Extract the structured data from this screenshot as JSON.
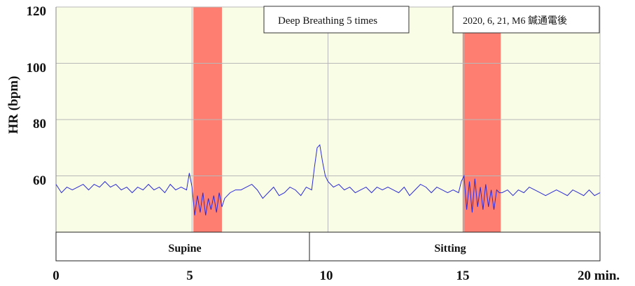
{
  "chart_data": {
    "type": "line",
    "title": "",
    "xlabel": "min.",
    "ylabel": "HR (bpm)",
    "xlim": [
      0,
      20
    ],
    "ylim": [
      40,
      120
    ],
    "grid": true,
    "x_ticks": [
      0,
      5,
      10,
      15,
      20
    ],
    "x_tick_labels": [
      "0",
      "5",
      "10",
      "15",
      "20 min."
    ],
    "y_ticks": [
      60,
      80,
      100,
      120
    ],
    "y_tick_labels": [
      "60",
      "80",
      "100",
      "120"
    ],
    "background_color": "#fafde6",
    "line_color": "#2b2bd8",
    "highlight_color": "#fe7f72",
    "highlights": [
      {
        "x_start": 5.05,
        "x_end": 6.1
      },
      {
        "x_start": 14.95,
        "x_end": 16.35
      }
    ],
    "annotations": [
      {
        "text": "Deep Breathing 5 times"
      },
      {
        "text": "2020, 6, 21, M6 鍼通電後"
      }
    ],
    "phases": [
      {
        "label": "Supine",
        "x_start": 0,
        "x_end": 9.3
      },
      {
        "label": "Sitting",
        "x_start": 9.3,
        "x_end": 20
      }
    ],
    "series": [
      {
        "x": [
          0,
          0.2,
          0.4,
          0.6,
          0.8,
          1.0,
          1.2,
          1.4,
          1.6,
          1.8,
          2.0,
          2.2,
          2.4,
          2.6,
          2.8,
          3.0,
          3.2,
          3.4,
          3.6,
          3.8,
          4.0,
          4.2,
          4.4,
          4.6,
          4.8,
          4.9,
          5.0,
          5.1,
          5.2,
          5.3,
          5.4,
          5.5,
          5.6,
          5.7,
          5.8,
          5.9,
          6.0,
          6.1,
          6.2,
          6.4,
          6.6,
          6.8,
          7.0,
          7.2,
          7.4,
          7.6,
          7.8,
          8.0,
          8.2,
          8.4,
          8.6,
          8.8,
          9.0,
          9.2,
          9.4,
          9.5,
          9.6,
          9.7,
          9.8,
          9.9,
          10.0,
          10.2,
          10.4,
          10.6,
          10.8,
          11.0,
          11.2,
          11.4,
          11.6,
          11.8,
          12.0,
          12.2,
          12.4,
          12.6,
          12.8,
          13.0,
          13.2,
          13.4,
          13.6,
          13.8,
          14.0,
          14.2,
          14.4,
          14.6,
          14.8,
          14.9,
          15.0,
          15.1,
          15.2,
          15.3,
          15.4,
          15.5,
          15.6,
          15.7,
          15.8,
          15.9,
          16.0,
          16.1,
          16.2,
          16.3,
          16.4,
          16.6,
          16.8,
          17.0,
          17.2,
          17.4,
          17.6,
          17.8,
          18.0,
          18.2,
          18.4,
          18.6,
          18.8,
          19.0,
          19.2,
          19.4,
          19.6,
          19.8,
          20.0
        ],
        "values": [
          57,
          54,
          56,
          55,
          56,
          57,
          55,
          57,
          56,
          58,
          56,
          57,
          55,
          56,
          54,
          56,
          55,
          57,
          55,
          56,
          54,
          57,
          55,
          56,
          55,
          61,
          56,
          46,
          53,
          47,
          54,
          46,
          52,
          48,
          53,
          47,
          54,
          49,
          52,
          54,
          55,
          55,
          56,
          57,
          55,
          52,
          54,
          56,
          53,
          54,
          56,
          55,
          53,
          56,
          55,
          63,
          70,
          71,
          65,
          60,
          58,
          56,
          57,
          55,
          56,
          54,
          55,
          56,
          54,
          56,
          55,
          56,
          55,
          54,
          56,
          53,
          55,
          57,
          56,
          54,
          56,
          55,
          54,
          55,
          54,
          58,
          60,
          48,
          58,
          47,
          59,
          49,
          56,
          48,
          57,
          49,
          55,
          48,
          55,
          54,
          54,
          55,
          53,
          55,
          54,
          56,
          55,
          54,
          53,
          54,
          55,
          54,
          53,
          55,
          54,
          53,
          55,
          53,
          54
        ]
      }
    ]
  }
}
